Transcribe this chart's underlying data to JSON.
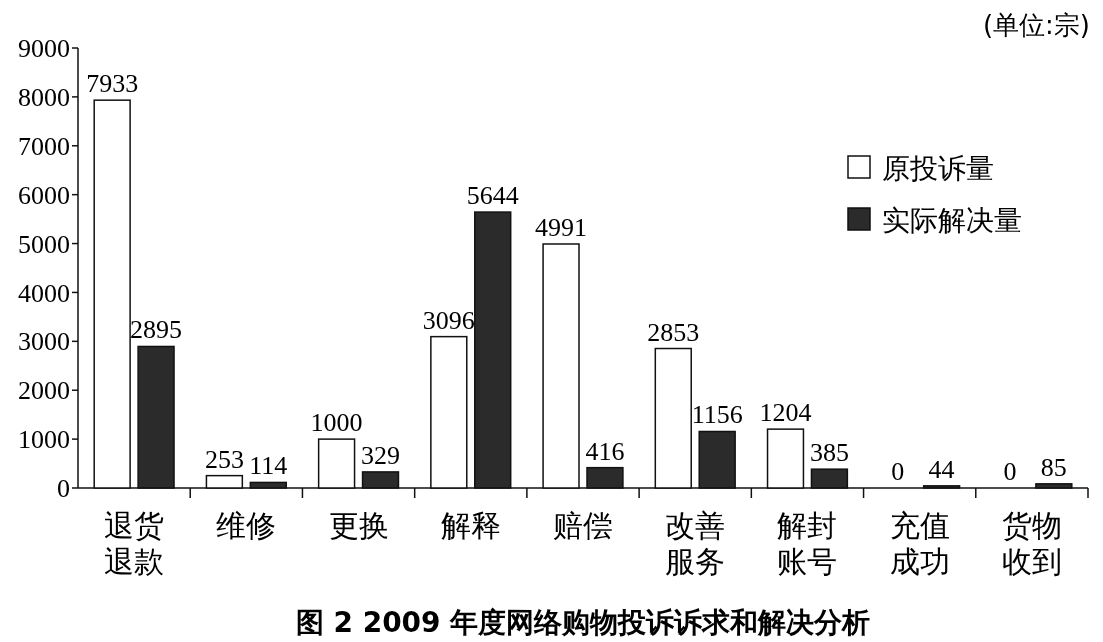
{
  "chart_data": {
    "type": "bar",
    "title": "图 2 2009 年度网络购物投诉诉求和解决分析",
    "annotations": [
      "(单位:宗)"
    ],
    "categories": [
      "退货退款",
      "维修",
      "更换",
      "解释",
      "赔偿",
      "改善服务",
      "解封账号",
      "充值成功",
      "货物收到"
    ],
    "series": [
      {
        "name": "原投诉量",
        "color": "#ffffff",
        "values": [
          7933,
          253,
          1000,
          3096,
          4991,
          2853,
          1204,
          0,
          0
        ]
      },
      {
        "name": "实际解决量",
        "color": "#2b2b2b",
        "values": [
          2895,
          114,
          329,
          5644,
          416,
          1156,
          385,
          44,
          85
        ]
      }
    ],
    "ylim": [
      0,
      9000
    ],
    "yticks": [
      0,
      1000,
      2000,
      3000,
      4000,
      5000,
      6000,
      7000,
      8000,
      9000
    ],
    "grid": false,
    "legend": "top right",
    "data_labels": true
  }
}
